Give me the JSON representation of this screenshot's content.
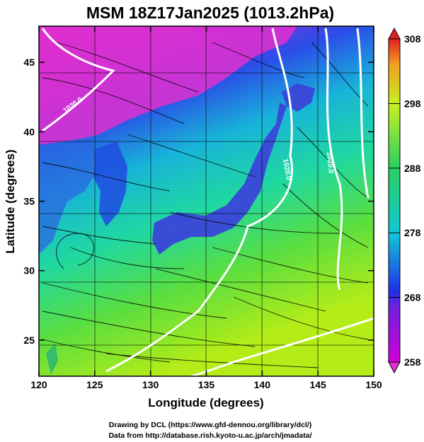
{
  "title": "MSM 18Z17Jan2025 (1013.2hPa)",
  "xlabel": "Longitude (degrees)",
  "ylabel": "Latitude  (degrees)",
  "footer": [
    "Drawing by DCL (https://www.gfd-dennou.org/library/dcl/)",
    "Data from http://database.rish.kyoto-u.ac.jp/arch/jmadata/"
  ],
  "chart_data": {
    "type": "map",
    "xlim": [
      120,
      150
    ],
    "ylim": [
      22.4,
      47.6
    ],
    "xticks": [
      120,
      125,
      130,
      135,
      140,
      145,
      150
    ],
    "yticks": [
      25,
      30,
      35,
      40,
      45
    ],
    "colorbar": {
      "min": 258,
      "max": 308,
      "tick_values": [
        258,
        268,
        278,
        288,
        298,
        308
      ],
      "colors": [
        "#d000d8",
        "#2030e8",
        "#10c8d8",
        "#28d060",
        "#c8f020",
        "#f0a020",
        "#e02020"
      ]
    },
    "contour_labels": [
      "1020.0",
      "1020.0",
      "1020.0"
    ]
  }
}
